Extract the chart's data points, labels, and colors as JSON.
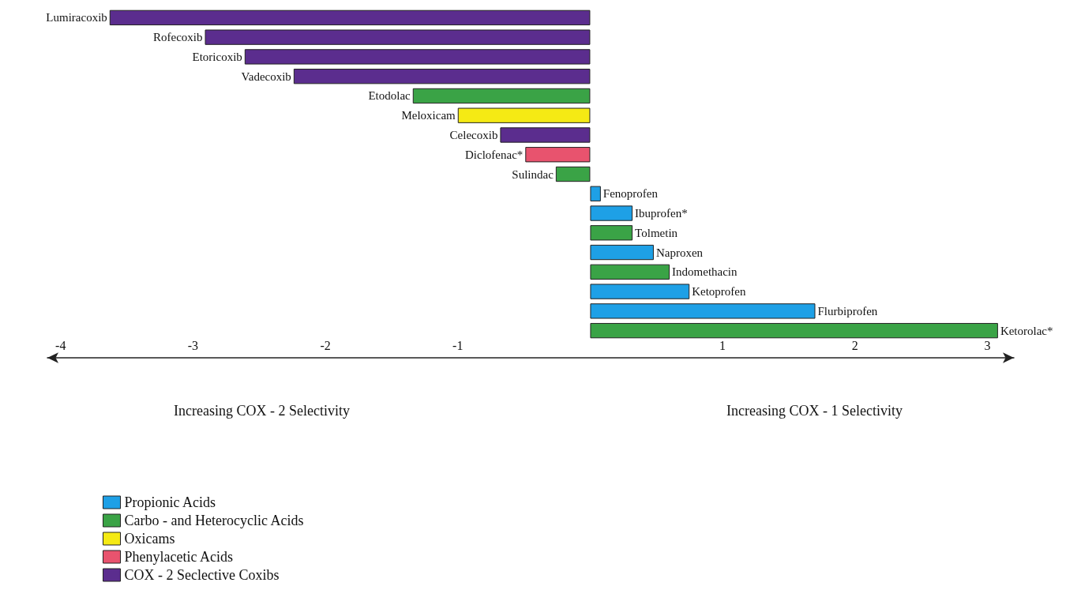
{
  "chart_data": {
    "type": "bar",
    "orientation": "horizontal",
    "categories": [
      "Lumiracoxib",
      "Rofecoxib",
      "Etoricoxib",
      "Vadecoxib",
      "Etodolac",
      "Meloxicam",
      "Celecoxib",
      "Diclofenac*",
      "Sulindac",
      "Fenoprofen",
      "Ibuprofen*",
      "Tolmetin",
      "Naproxen",
      "Indomethacin",
      "Ketoprofen",
      "Flurbiprofen",
      "Ketorolac*"
    ],
    "series": [
      {
        "name": "Propionic Acids",
        "color": "#1ea0e6",
        "values": [
          null,
          null,
          null,
          null,
          null,
          null,
          null,
          null,
          null,
          0.08,
          0.32,
          null,
          0.48,
          null,
          0.75,
          1.7,
          null
        ]
      },
      {
        "name": "Carbo - and Heterocyclic Acids",
        "color": "#3aa346",
        "values": [
          null,
          null,
          null,
          null,
          -1.34,
          null,
          null,
          null,
          -0.26,
          null,
          null,
          0.32,
          null,
          0.6,
          null,
          null,
          3.08
        ]
      },
      {
        "name": "Oxicams",
        "color": "#f5ea14",
        "values": [
          null,
          null,
          null,
          null,
          null,
          -1.0,
          null,
          null,
          null,
          null,
          null,
          null,
          null,
          null,
          null,
          null,
          null
        ]
      },
      {
        "name": "Phenylacetic Acids",
        "color": "#e8536e",
        "values": [
          null,
          null,
          null,
          null,
          null,
          null,
          null,
          -0.49,
          null,
          null,
          null,
          null,
          null,
          null,
          null,
          null,
          null
        ]
      },
      {
        "name": "COX - 2 Seclective Coxibs",
        "color": "#5b2d8e",
        "values": [
          -3.63,
          -2.91,
          -2.61,
          -2.24,
          null,
          null,
          -0.68,
          null,
          null,
          null,
          null,
          null,
          null,
          null,
          null,
          null,
          null
        ]
      }
    ],
    "xlim": [
      -4.1,
      3.2
    ],
    "xticks": [
      -4,
      -3,
      -2,
      -1,
      1,
      2,
      3
    ],
    "annotations": [
      "Increasing COX - 2 Selectivity",
      "Increasing COX - 1 Selectivity"
    ],
    "grid": false,
    "legend": "bottom left"
  }
}
